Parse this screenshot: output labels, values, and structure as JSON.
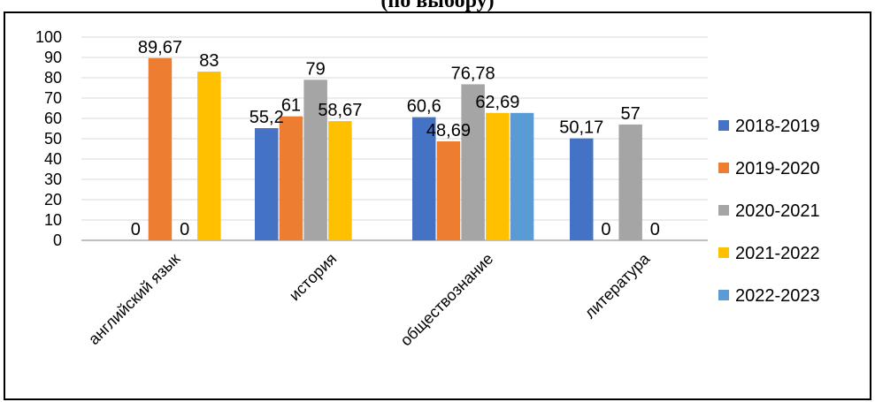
{
  "chart_data": {
    "type": "bar",
    "title": "(по выбору)",
    "categories": [
      "английский язык",
      "история",
      "обществознание",
      "литература"
    ],
    "series": [
      {
        "name": "2018-2019",
        "color": "#4472C4",
        "values": [
          0,
          55.2,
          60.6,
          50.17
        ],
        "labels": [
          "0",
          "55,2",
          "60,6",
          "50,17"
        ]
      },
      {
        "name": "2019-2020",
        "color": "#ED7D31",
        "values": [
          89.67,
          61,
          48.69,
          0
        ],
        "labels": [
          "89,67",
          "61",
          "48,69",
          "0"
        ]
      },
      {
        "name": "2020-2021",
        "color": "#A5A5A5",
        "values": [
          0,
          79,
          76.78,
          57
        ],
        "labels": [
          "0",
          "79",
          "76,78",
          "57"
        ]
      },
      {
        "name": "2021-2022",
        "color": "#FFC000",
        "values": [
          83,
          58.67,
          62.69,
          0
        ],
        "labels": [
          "83",
          "58,67",
          "62,69",
          "0"
        ]
      },
      {
        "name": "2022-2023",
        "color": "#5B9BD5",
        "values": [
          null,
          null,
          62.69,
          null
        ],
        "labels": [
          "",
          "",
          "",
          ""
        ]
      }
    ],
    "yticks": [
      "0",
      "10",
      "20",
      "30",
      "40",
      "50",
      "60",
      "70",
      "80",
      "90",
      "100"
    ],
    "ylim": [
      0,
      100
    ],
    "grid": true,
    "legend_position": "right"
  }
}
